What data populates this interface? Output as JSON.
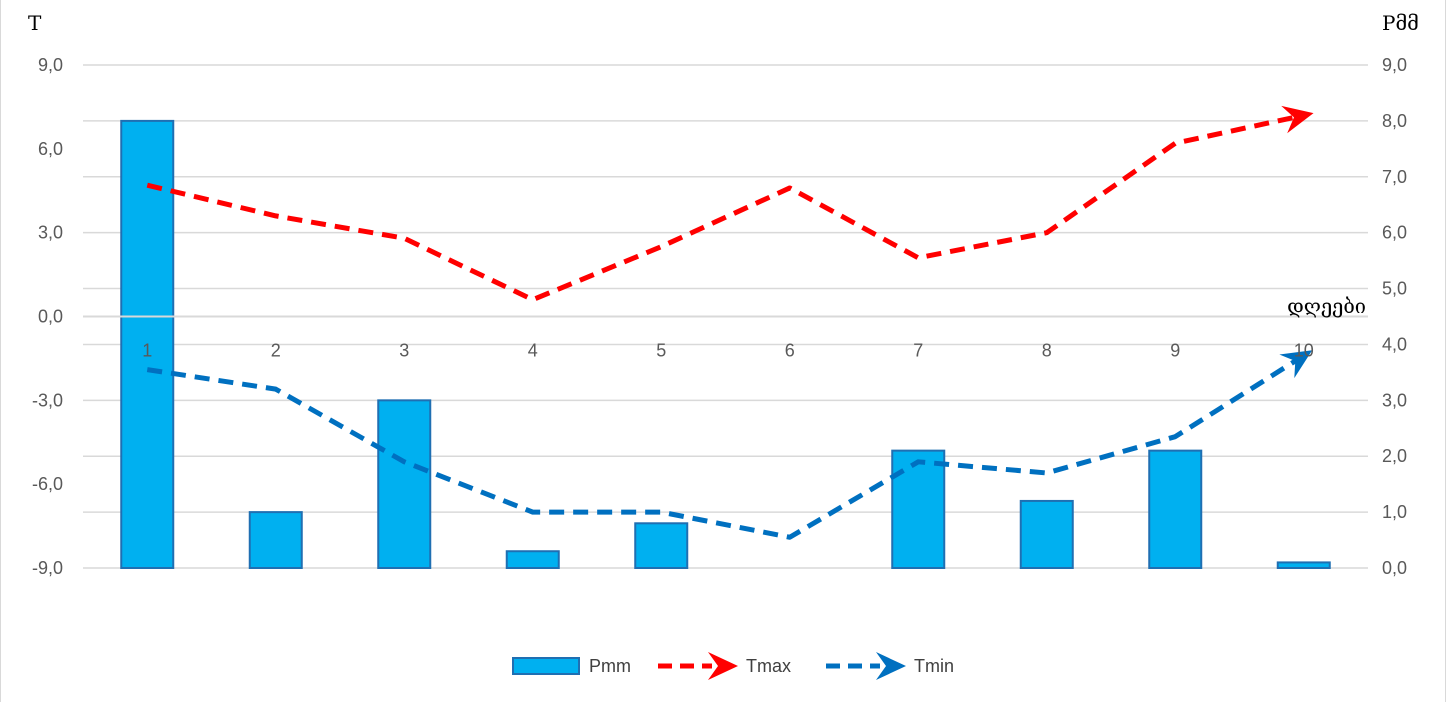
{
  "chart_data": {
    "type": "bar+line",
    "categories": [
      "1",
      "2",
      "3",
      "4",
      "5",
      "6",
      "7",
      "8",
      "9",
      "10"
    ],
    "xlabel": "დღეები",
    "left_axis": {
      "label": "T",
      "ylim": [
        -9,
        9
      ],
      "ticks": [
        "9,0",
        "6,0",
        "3,0",
        "0,0",
        "-3,0",
        "-6,0",
        "-9,0"
      ]
    },
    "right_axis": {
      "label": "Pმმ",
      "ylim": [
        0,
        9
      ],
      "ticks": [
        "9,0",
        "8,0",
        "7,0",
        "6,0",
        "5,0",
        "4,0",
        "3,0",
        "2,0",
        "1,0",
        "0,0"
      ]
    },
    "grid": true,
    "legend_position": "bottom",
    "series": [
      {
        "name": "Pmm",
        "type": "bar",
        "axis": "right",
        "color": "#00b0f0",
        "values": [
          8.0,
          1.0,
          3.0,
          0.3,
          0.8,
          0.0,
          2.1,
          1.2,
          2.1,
          0.1
        ]
      },
      {
        "name": "Tmax",
        "type": "line",
        "axis": "left",
        "style": "dashed",
        "end": "arrow",
        "color": "#ff0000",
        "values": [
          4.7,
          3.6,
          2.8,
          0.6,
          2.5,
          4.6,
          2.1,
          3.0,
          6.2,
          7.2
        ]
      },
      {
        "name": "Tmin",
        "type": "line",
        "axis": "left",
        "style": "dashed",
        "end": "arrow",
        "color": "#0070c0",
        "values": [
          -1.9,
          -2.6,
          -5.2,
          -7.0,
          -7.0,
          -7.9,
          -5.2,
          -5.6,
          -4.3,
          -1.4
        ]
      }
    ]
  }
}
